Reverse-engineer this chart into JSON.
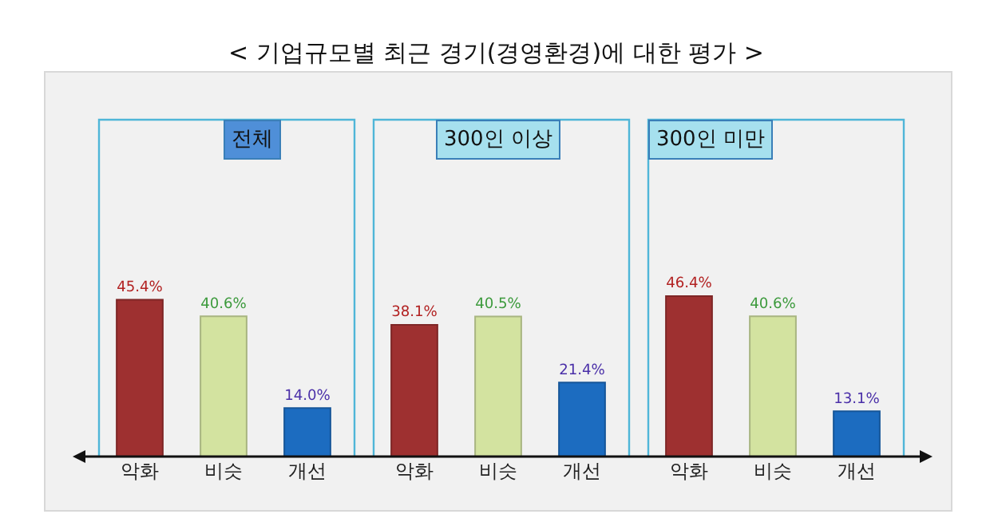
{
  "chart_data": [
    {
      "type": "bar",
      "title": "전체",
      "annotations": [
        "< 기업규모별 최근 경기(경영환경)에 대한 평가 >"
      ],
      "categories": [
        "악화",
        "비슷",
        "개선"
      ],
      "values": [
        45.4,
        40.6,
        14.0
      ],
      "colors": [
        "#9e3030",
        "#d3e3a0",
        "#1c6cc0"
      ],
      "value_labels": [
        "45.4%",
        "40.6%",
        "14.0%"
      ]
    },
    {
      "type": "bar",
      "title": "300인 이상",
      "categories": [
        "악화",
        "비슷",
        "개선"
      ],
      "values": [
        38.1,
        40.5,
        21.4
      ],
      "colors": [
        "#9e3030",
        "#d3e3a0",
        "#1c6cc0"
      ],
      "value_labels": [
        "38.1%",
        "40.5%",
        "21.4%"
      ]
    },
    {
      "type": "bar",
      "title": "300인 미만",
      "categories": [
        "악화",
        "비슷",
        "개선"
      ],
      "values": [
        46.4,
        40.6,
        13.1
      ],
      "colors": [
        "#9e3030",
        "#d3e3a0",
        "#1c6cc0"
      ],
      "value_labels": [
        "46.4%",
        "40.6%",
        "13.1%"
      ]
    }
  ]
}
